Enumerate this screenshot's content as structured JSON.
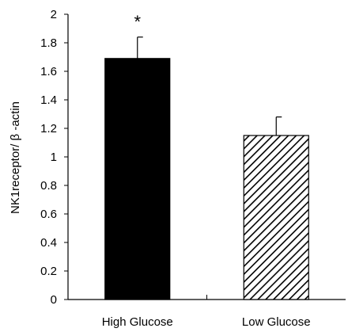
{
  "chart_data": {
    "type": "bar",
    "title": "",
    "xlabel": "",
    "ylabel": "NK1receptor/ β -actin",
    "categories": [
      "High Glucose",
      "Low Glucose"
    ],
    "values": [
      1.69,
      1.15
    ],
    "error_upper": [
      1.84,
      1.28
    ],
    "significance": [
      "*",
      ""
    ],
    "ylim": [
      0,
      2
    ],
    "yticks": [
      "0",
      "0.2",
      "0.4",
      "0.6",
      "0.8",
      "1",
      "1.2",
      "1.4",
      "1.6",
      "1.8",
      "2"
    ],
    "grid": false,
    "legend": "none",
    "fills": [
      "solid-black",
      "diagonal-hatch"
    ],
    "colors": {
      "solid": "#000000",
      "hatch": "#000000",
      "background": "#ffffff"
    }
  }
}
